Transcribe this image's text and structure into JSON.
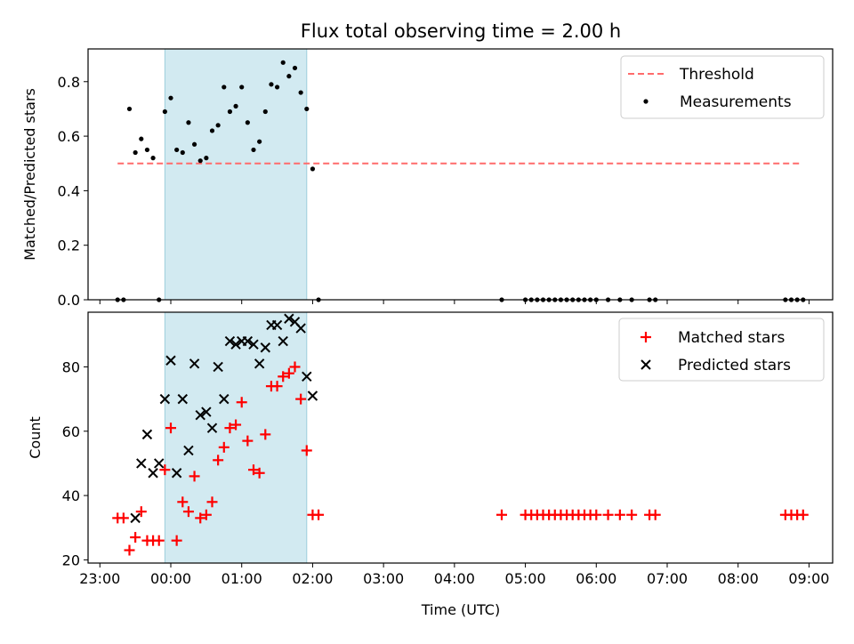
{
  "chart_data": [
    {
      "type": "scatter",
      "title": "Flux total observing time = 2.00 h",
      "xlabel": "",
      "ylabel": "Matched/Predicted stars",
      "ylim": [
        0,
        0.92
      ],
      "yticks": [
        "0.0",
        "0.2",
        "0.4",
        "0.6",
        "0.8"
      ],
      "shaded_region": {
        "start": "23:55",
        "end": "01:55",
        "color": "#add8e6"
      },
      "legend": {
        "placement": "top-right",
        "entries": [
          {
            "label": "Threshold",
            "marker": "dashed-line",
            "color": "#ff6b6b"
          },
          {
            "label": "Measurements",
            "marker": "dot",
            "color": "#000000"
          }
        ]
      },
      "series": [
        {
          "name": "Threshold",
          "type": "line",
          "style": "dashed",
          "color": "#ff6b6b",
          "x": [
            "23:15",
            "08:53"
          ],
          "y": [
            0.5,
            0.5
          ]
        },
        {
          "name": "Measurements",
          "type": "scatter",
          "marker": "dot",
          "color": "#000000",
          "x": [
            "23:15",
            "23:20",
            "23:25",
            "23:30",
            "23:35",
            "23:40",
            "23:45",
            "23:50",
            "23:55",
            "00:00",
            "00:05",
            "00:10",
            "00:15",
            "00:20",
            "00:25",
            "00:30",
            "00:35",
            "00:40",
            "00:45",
            "00:50",
            "00:55",
            "01:00",
            "01:05",
            "01:10",
            "01:15",
            "01:20",
            "01:25",
            "01:30",
            "01:35",
            "01:40",
            "01:45",
            "01:50",
            "01:55",
            "02:00",
            "02:05",
            "04:40",
            "05:00",
            "05:05",
            "05:10",
            "05:15",
            "05:20",
            "05:25",
            "05:30",
            "05:35",
            "05:40",
            "05:45",
            "05:50",
            "05:55",
            "06:00",
            "06:10",
            "06:20",
            "06:30",
            "06:45",
            "06:50",
            "08:40",
            "08:45",
            "08:50",
            "08:55"
          ],
          "y": [
            0.0,
            0.0,
            0.7,
            0.54,
            0.59,
            0.55,
            0.52,
            0.0,
            0.69,
            0.74,
            0.55,
            0.54,
            0.65,
            0.57,
            0.51,
            0.52,
            0.62,
            0.64,
            0.78,
            0.69,
            0.71,
            0.78,
            0.65,
            0.55,
            0.58,
            0.69,
            0.79,
            0.78,
            0.87,
            0.82,
            0.85,
            0.76,
            0.7,
            0.48,
            0.0,
            0.0,
            0.0,
            0.0,
            0.0,
            0.0,
            0.0,
            0.0,
            0.0,
            0.0,
            0.0,
            0.0,
            0.0,
            0.0,
            0.0,
            0.0,
            0.0,
            0.0,
            0.0,
            0.0,
            0.0,
            0.0,
            0.0,
            0.0
          ]
        }
      ]
    },
    {
      "type": "scatter",
      "title": "",
      "xlabel": "Time (UTC)",
      "ylabel": "Count",
      "ylim": [
        19,
        97
      ],
      "yticks": [
        "20",
        "40",
        "60",
        "80"
      ],
      "xticks": [
        "23:00",
        "00:00",
        "01:00",
        "02:00",
        "03:00",
        "04:00",
        "05:00",
        "06:00",
        "07:00",
        "08:00",
        "09:00"
      ],
      "shaded_region": {
        "start": "23:55",
        "end": "01:55",
        "color": "#add8e6"
      },
      "legend": {
        "placement": "top-right",
        "entries": [
          {
            "label": "Matched stars",
            "marker": "plus",
            "color": "#ff0000"
          },
          {
            "label": "Predicted stars",
            "marker": "x",
            "color": "#000000"
          }
        ]
      },
      "series": [
        {
          "name": "Matched stars",
          "marker": "plus",
          "color": "#ff0000",
          "x": [
            "23:15",
            "23:20",
            "23:25",
            "23:30",
            "23:35",
            "23:40",
            "23:45",
            "23:50",
            "23:55",
            "00:00",
            "00:05",
            "00:10",
            "00:15",
            "00:20",
            "00:25",
            "00:30",
            "00:35",
            "00:40",
            "00:45",
            "00:50",
            "00:55",
            "01:00",
            "01:05",
            "01:10",
            "01:15",
            "01:20",
            "01:25",
            "01:30",
            "01:35",
            "01:40",
            "01:45",
            "01:50",
            "01:55",
            "02:00",
            "02:05",
            "04:40",
            "05:00",
            "05:05",
            "05:10",
            "05:15",
            "05:20",
            "05:25",
            "05:30",
            "05:35",
            "05:40",
            "05:45",
            "05:50",
            "05:55",
            "06:00",
            "06:10",
            "06:20",
            "06:30",
            "06:45",
            "06:50",
            "08:40",
            "08:45",
            "08:50",
            "08:55"
          ],
          "y": [
            33,
            33,
            23,
            27,
            35,
            26,
            26,
            26,
            48,
            61,
            26,
            38,
            35,
            46,
            33,
            34,
            38,
            51,
            55,
            61,
            62,
            69,
            57,
            48,
            47,
            59,
            74,
            74,
            77,
            78,
            80,
            70,
            54,
            34,
            34,
            34,
            34,
            34,
            34,
            34,
            34,
            34,
            34,
            34,
            34,
            34,
            34,
            34,
            34,
            34,
            34,
            34,
            34,
            34,
            34,
            34,
            34,
            34
          ]
        },
        {
          "name": "Predicted stars",
          "marker": "x",
          "color": "#000000",
          "x": [
            "23:30",
            "23:35",
            "23:40",
            "23:45",
            "23:50",
            "23:55",
            "00:00",
            "00:05",
            "00:10",
            "00:15",
            "00:20",
            "00:25",
            "00:30",
            "00:35",
            "00:40",
            "00:45",
            "00:50",
            "00:55",
            "01:00",
            "01:05",
            "01:10",
            "01:15",
            "01:20",
            "01:25",
            "01:30",
            "01:35",
            "01:40",
            "01:45",
            "01:50",
            "01:55",
            "02:00"
          ],
          "y": [
            33,
            50,
            59,
            47,
            50,
            70,
            82,
            47,
            70,
            54,
            81,
            65,
            66,
            61,
            80,
            70,
            88,
            87,
            88,
            88,
            87,
            81,
            86,
            93,
            93,
            88,
            95,
            94,
            92,
            77,
            71
          ]
        }
      ]
    }
  ]
}
